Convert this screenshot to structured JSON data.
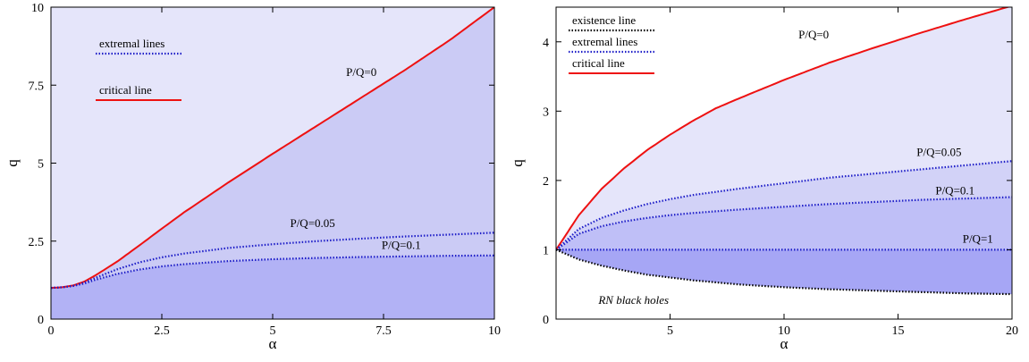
{
  "chart_data": [
    {
      "type": "area",
      "xlabel": "α",
      "ylabel": "q",
      "xlim": [
        0,
        10
      ],
      "ylim": [
        0,
        10
      ],
      "xticks": [
        0,
        2.5,
        5,
        7.5,
        10
      ],
      "xtick_labels": [
        "0",
        "2.5",
        "5",
        "7.5",
        "10"
      ],
      "yticks": [
        0,
        2.5,
        5,
        7.5,
        10
      ],
      "ytick_labels": [
        "0",
        "2.5",
        "5",
        "7.5",
        "10"
      ],
      "legend": [
        {
          "label": "extremal lines",
          "style": "dotted",
          "color": "#1f1fc8"
        },
        {
          "label": "critical line",
          "style": "solid",
          "color": "#ee1111"
        }
      ],
      "series": [
        {
          "name": "P/Q=0",
          "style": "solid",
          "color": "#ee1111",
          "x": [
            0,
            0.25,
            0.5,
            0.75,
            1,
            1.5,
            2,
            2.5,
            3,
            4,
            5,
            6,
            7,
            8,
            9,
            10
          ],
          "y": [
            1.0,
            1.02,
            1.08,
            1.2,
            1.4,
            1.85,
            2.37,
            2.9,
            3.42,
            4.38,
            5.3,
            6.2,
            7.1,
            8.0,
            8.95,
            10.0
          ]
        },
        {
          "name": "P/Q=0.05",
          "style": "dotted",
          "color": "#1f1fc8",
          "x": [
            0,
            0.25,
            0.5,
            0.75,
            1,
            1.5,
            2,
            2.5,
            3,
            4,
            5,
            6,
            7,
            8,
            9,
            10
          ],
          "y": [
            1.0,
            1.02,
            1.07,
            1.17,
            1.32,
            1.6,
            1.82,
            1.98,
            2.1,
            2.28,
            2.4,
            2.5,
            2.58,
            2.65,
            2.71,
            2.77
          ]
        },
        {
          "name": "P/Q=0.1",
          "style": "dotted",
          "color": "#1f1fc8",
          "x": [
            0,
            0.25,
            0.5,
            0.75,
            1,
            1.5,
            2,
            2.5,
            3,
            4,
            5,
            6,
            7,
            8,
            9,
            10
          ],
          "y": [
            1.0,
            1.02,
            1.06,
            1.14,
            1.26,
            1.45,
            1.59,
            1.69,
            1.76,
            1.86,
            1.92,
            1.96,
            1.99,
            2.01,
            2.03,
            2.04
          ]
        }
      ],
      "annotations": [
        {
          "text": "P/Q=0",
          "x": 7.0,
          "y": 7.8
        },
        {
          "text": "P/Q=0.05",
          "x": 5.9,
          "y": 2.95
        },
        {
          "text": "P/Q=0.1",
          "x": 7.9,
          "y": 2.25
        }
      ],
      "fill_colors": [
        "#e5e5fa",
        "#cbcbf5",
        "#b2b2f5"
      ]
    },
    {
      "type": "area",
      "xlabel": "α",
      "ylabel": "q",
      "xlim": [
        0,
        20
      ],
      "ylim": [
        0,
        4.5
      ],
      "xticks": [
        5,
        10,
        15,
        20
      ],
      "xtick_labels": [
        "5",
        "10",
        "15",
        "20"
      ],
      "yticks": [
        0,
        1,
        2,
        3,
        4
      ],
      "ytick_labels": [
        "0",
        "1",
        "2",
        "3",
        "4"
      ],
      "legend": [
        {
          "label": "existence line",
          "style": "dotted",
          "color": "#000000"
        },
        {
          "label": "extremal lines",
          "style": "dotted",
          "color": "#1f1fc8"
        },
        {
          "label": "critical line",
          "style": "solid",
          "color": "#ee1111"
        }
      ],
      "series": [
        {
          "name": "P/Q=0",
          "style": "solid",
          "color": "#ee1111",
          "x": [
            0,
            1,
            2,
            3,
            4,
            5,
            6,
            7,
            8,
            10,
            12,
            14,
            16,
            18,
            20
          ],
          "y": [
            1.0,
            1.5,
            1.88,
            2.18,
            2.44,
            2.66,
            2.86,
            3.04,
            3.18,
            3.45,
            3.7,
            3.92,
            4.13,
            4.33,
            4.52
          ]
        },
        {
          "name": "P/Q=0.05",
          "style": "dotted",
          "color": "#1f1fc8",
          "x": [
            0,
            1,
            2,
            3,
            4,
            5,
            6,
            8,
            10,
            12,
            14,
            16,
            18,
            20
          ],
          "y": [
            1.0,
            1.3,
            1.46,
            1.57,
            1.66,
            1.73,
            1.79,
            1.88,
            1.96,
            2.04,
            2.1,
            2.16,
            2.22,
            2.28
          ]
        },
        {
          "name": "P/Q=0.1",
          "style": "dotted",
          "color": "#1f1fc8",
          "x": [
            0,
            1,
            2,
            3,
            4,
            5,
            6,
            8,
            10,
            12,
            14,
            16,
            18,
            20
          ],
          "y": [
            1.0,
            1.23,
            1.34,
            1.41,
            1.46,
            1.5,
            1.53,
            1.58,
            1.62,
            1.66,
            1.69,
            1.72,
            1.74,
            1.76
          ]
        },
        {
          "name": "P/Q=1",
          "style": "dotted",
          "color": "#1f1fc8",
          "x": [
            0,
            20
          ],
          "y": [
            1.0,
            1.0
          ]
        },
        {
          "name": "existence line",
          "style": "dotted",
          "color": "#000000",
          "x": [
            0,
            1,
            2,
            3,
            4,
            5,
            6,
            8,
            10,
            12,
            14,
            16,
            18,
            20
          ],
          "y": [
            1.0,
            0.86,
            0.77,
            0.7,
            0.64,
            0.6,
            0.56,
            0.5,
            0.46,
            0.43,
            0.41,
            0.39,
            0.37,
            0.36
          ]
        }
      ],
      "annotations": [
        {
          "text": "P/Q=0",
          "x": 11.3,
          "y": 4.05
        },
        {
          "text": "P/Q=0.05",
          "x": 16.8,
          "y": 2.35
        },
        {
          "text": "P/Q=0.1",
          "x": 17.5,
          "y": 1.8
        },
        {
          "text": "P/Q=1",
          "x": 18.5,
          "y": 1.1
        },
        {
          "text": "RN black holes",
          "x": 3.4,
          "y": 0.22,
          "italic": true
        }
      ],
      "fill_colors": [
        "#e5e5fa",
        "#d2d2f7",
        "#bfbff7",
        "#a6a6f5"
      ]
    }
  ]
}
